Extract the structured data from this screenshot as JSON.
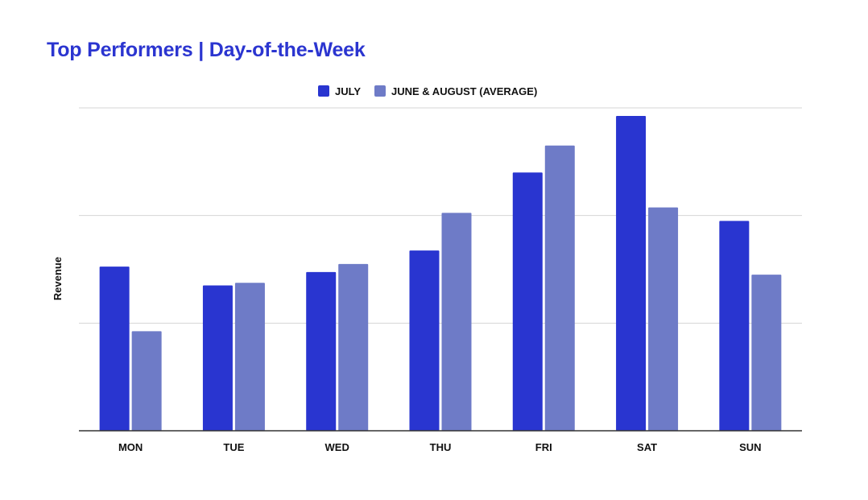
{
  "chart_data": {
    "type": "bar",
    "title": "Top Performers  |  Day-of-the-Week",
    "xlabel": "",
    "ylabel": "Revenue",
    "categories": [
      "MON",
      "TUE",
      "WED",
      "THU",
      "FRI",
      "SAT",
      "SUN"
    ],
    "series": [
      {
        "name": "JULY",
        "color": "#2935d0",
        "values": [
          61,
          54,
          59,
          67,
          96,
          117,
          78
        ]
      },
      {
        "name": "JUNE & AUGUST (AVERAGE)",
        "color": "#6e7bc7",
        "values": [
          37,
          55,
          62,
          81,
          106,
          83,
          58
        ]
      }
    ],
    "ylim": [
      0,
      120
    ],
    "y_ticks": [
      0,
      40,
      80,
      120
    ],
    "y_tick_labels_shown": false,
    "grid": true,
    "legend_position": "top-center"
  }
}
